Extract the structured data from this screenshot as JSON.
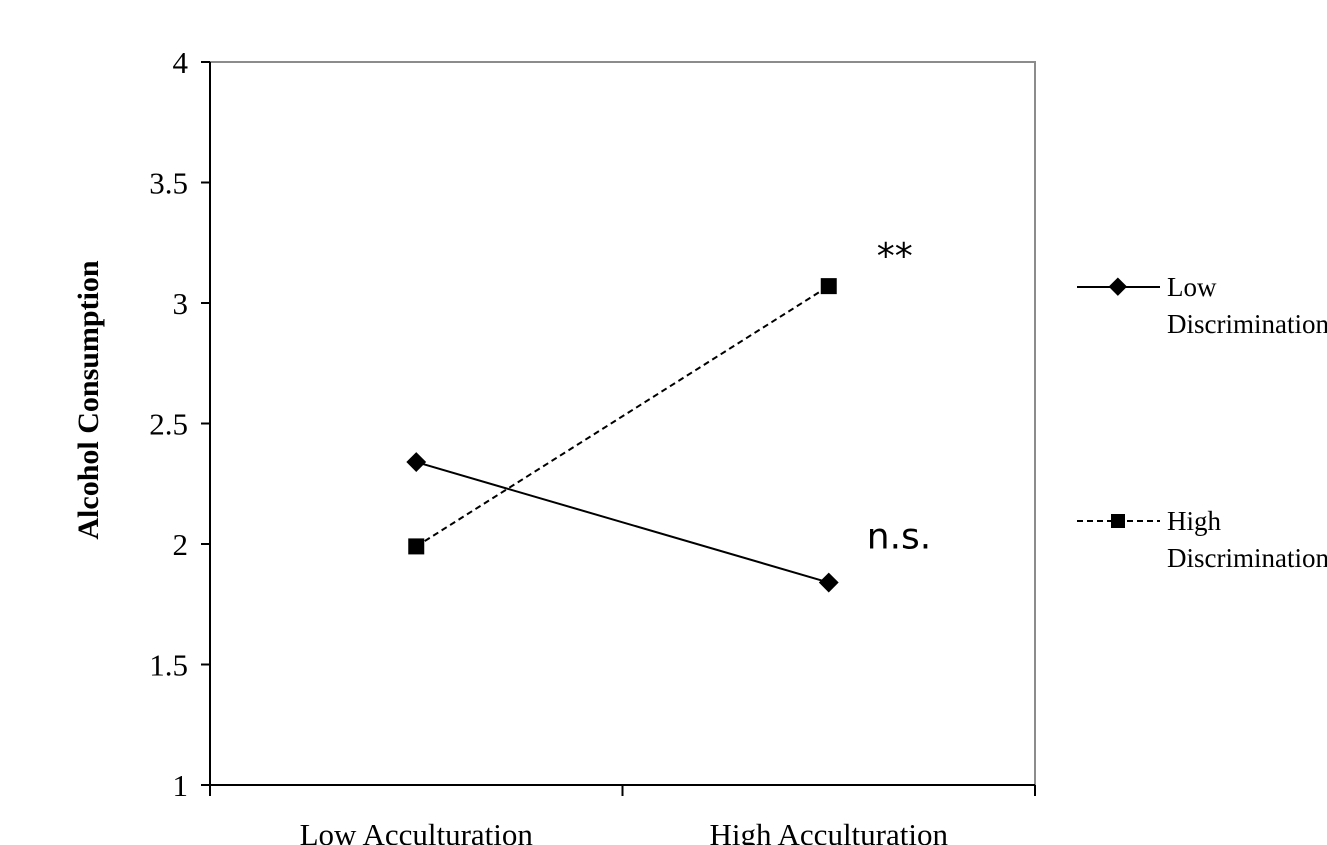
{
  "chart_data": {
    "type": "line",
    "ylabel": "Alcohol Consumption",
    "xlabel": "",
    "categories": [
      "Low Acculturation",
      "High Acculturation"
    ],
    "ylim": [
      1,
      4
    ],
    "yticks": [
      "1",
      "1.5",
      "2",
      "2.5",
      "3",
      "3.5",
      "4"
    ],
    "grid": false,
    "legend_position": "right",
    "series": [
      {
        "name": "Low Discrimination",
        "values": [
          2.34,
          1.84
        ],
        "line_style": "solid",
        "marker": "diamond",
        "color": "#000000"
      },
      {
        "name": "High Discrimination",
        "values": [
          1.99,
          3.07
        ],
        "line_style": "dashed",
        "marker": "square",
        "color": "#000000"
      }
    ],
    "annotations": [
      {
        "text": "**",
        "series": "High Discrimination",
        "category": "High Acculturation"
      },
      {
        "text": "n.s.",
        "series": "Low Discrimination",
        "category": "High Acculturation"
      }
    ],
    "legend": [
      {
        "line1": "Low",
        "line2": "Discrimination"
      },
      {
        "line1": "High",
        "line2": "Discrimination"
      }
    ]
  }
}
